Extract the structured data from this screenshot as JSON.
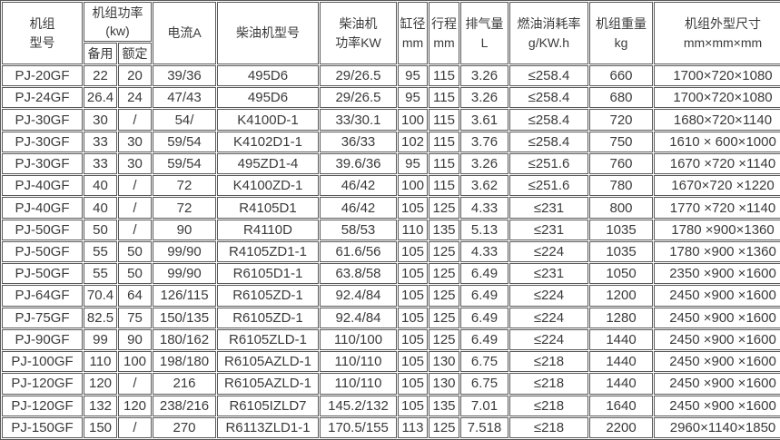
{
  "colors": {
    "border": "#595959",
    "text": "#3a3a3a",
    "background": "#ffffff"
  },
  "table": {
    "header": {
      "model": {
        "l1": "机组",
        "l2": "型号"
      },
      "power_title": {
        "l1": "机组功率",
        "l2": "(kw)"
      },
      "power_sub": {
        "standby": "备用",
        "rated": "额定"
      },
      "current": "电流A",
      "engine_model": "柴油机型号",
      "engine_power": {
        "l1": "柴油机",
        "l2": "功率KW"
      },
      "bore": {
        "l1": "缸径",
        "l2": "mm"
      },
      "stroke": {
        "l1": "行程",
        "l2": "mm"
      },
      "displacement": {
        "l1": "排气量",
        "l2": "L"
      },
      "fuel": {
        "l1": "燃油消耗率",
        "l2": "g/KW.h"
      },
      "weight": {
        "l1": "机组重量",
        "l2": "kg"
      },
      "dimensions": {
        "l1": "机组外型尺寸",
        "l2": "mm×mm×mm"
      }
    },
    "rows": [
      {
        "model": "PJ-20GF",
        "standby": "22",
        "rated": "20",
        "current": "39/36",
        "engine": "495D6",
        "engine_power": "29/26.5",
        "bore": "95",
        "stroke": "115",
        "displacement": "3.26",
        "fuel": "≤258.4",
        "weight": "660",
        "dimensions": "1700×720×1080"
      },
      {
        "model": "PJ-24GF",
        "standby": "26.4",
        "rated": "24",
        "current": "47/43",
        "engine": "495D6",
        "engine_power": "29/26.5",
        "bore": "95",
        "stroke": "115",
        "displacement": "3.26",
        "fuel": "≤258.4",
        "weight": "680",
        "dimensions": "1700×720×1080"
      },
      {
        "model": "PJ-30GF",
        "standby": "30",
        "rated": "/",
        "current": "54/",
        "engine": "K4100D-1",
        "engine_power": "33/30.1",
        "bore": "100",
        "stroke": "115",
        "displacement": "3.61",
        "fuel": "≤258.4",
        "weight": "720",
        "dimensions": "1680×720×1140"
      },
      {
        "model": "PJ-30GF",
        "standby": "33",
        "rated": "30",
        "current": "59/54",
        "engine": "K4102D1-1",
        "engine_power": "36/33",
        "bore": "102",
        "stroke": "115",
        "displacement": "3.76",
        "fuel": "≤258.4",
        "weight": "750",
        "dimensions": "1610 × 600×1000"
      },
      {
        "model": "PJ-30GF",
        "standby": "33",
        "rated": "30",
        "current": "59/54",
        "engine": "495ZD1-4",
        "engine_power": "39.6/36",
        "bore": "95",
        "stroke": "115",
        "displacement": "3.26",
        "fuel": "≤251.6",
        "weight": "760",
        "dimensions": "1670 ×720 ×1140"
      },
      {
        "model": "PJ-40GF",
        "standby": "40",
        "rated": "/",
        "current": "72",
        "engine": "K4100ZD-1",
        "engine_power": "46/42",
        "bore": "100",
        "stroke": "115",
        "displacement": "3.62",
        "fuel": "≤251.6",
        "weight": "780",
        "dimensions": "1670×720 ×1220"
      },
      {
        "model": "PJ-40GF",
        "standby": "40",
        "rated": "/",
        "current": "72",
        "engine": "R4105D1",
        "engine_power": "46/42",
        "bore": "105",
        "stroke": "125",
        "displacement": "4.33",
        "fuel": "≤231",
        "weight": "800",
        "dimensions": "1770 ×720 ×1140"
      },
      {
        "model": "PJ-50GF",
        "standby": "50",
        "rated": "/",
        "current": "90",
        "engine": "R4110D",
        "engine_power": "58/53",
        "bore": "110",
        "stroke": "135",
        "displacement": "5.13",
        "fuel": "≤231",
        "weight": "1035",
        "dimensions": "1780 ×900×1360"
      },
      {
        "model": "PJ-50GF",
        "standby": "55",
        "rated": "50",
        "current": "99/90",
        "engine": "R4105ZD1-1",
        "engine_power": "61.6/56",
        "bore": "105",
        "stroke": "125",
        "displacement": "4.33",
        "fuel": "≤224",
        "weight": "1035",
        "dimensions": "1780 ×900 ×1360"
      },
      {
        "model": "PJ-50GF",
        "standby": "55",
        "rated": "50",
        "current": "99/90",
        "engine": "R6105D1-1",
        "engine_power": "63.8/58",
        "bore": "105",
        "stroke": "125",
        "displacement": "6.49",
        "fuel": "≤231",
        "weight": "1050",
        "dimensions": "2350 ×900 ×1600"
      },
      {
        "model": "PJ-64GF",
        "standby": "70.4",
        "rated": "64",
        "current": "126/115",
        "engine": "R6105ZD-1",
        "engine_power": "92.4/84",
        "bore": "105",
        "stroke": "125",
        "displacement": "6.49",
        "fuel": "≤224",
        "weight": "1200",
        "dimensions": "2450 ×900 ×1600"
      },
      {
        "model": "PJ-75GF",
        "standby": "82.5",
        "rated": "75",
        "current": "150/135",
        "engine": "R6105ZD-1",
        "engine_power": "92.4/84",
        "bore": "105",
        "stroke": "125",
        "displacement": "6.49",
        "fuel": "≤224",
        "weight": "1280",
        "dimensions": "2450 ×900 ×1600"
      },
      {
        "model": "PJ-90GF",
        "standby": "99",
        "rated": "90",
        "current": "180/162",
        "engine": "R6105ZLD-1",
        "engine_power": "110/100",
        "bore": "105",
        "stroke": "125",
        "displacement": "6.49",
        "fuel": "≤224",
        "weight": "1440",
        "dimensions": "2450 ×900 ×1600"
      },
      {
        "model": "PJ-100GF",
        "standby": "110",
        "rated": "100",
        "current": "198/180",
        "engine": "R6105AZLD-1",
        "engine_power": "110/110",
        "bore": "105",
        "stroke": "130",
        "displacement": "6.75",
        "fuel": "≤218",
        "weight": "1440",
        "dimensions": "2450 ×900 ×1600"
      },
      {
        "model": "PJ-120GF",
        "standby": "120",
        "rated": "/",
        "current": "216",
        "engine": "R6105AZLD-1",
        "engine_power": "110/110",
        "bore": "105",
        "stroke": "130",
        "displacement": "6.75",
        "fuel": "≤218",
        "weight": "1440",
        "dimensions": "2450 ×900 ×1600"
      },
      {
        "model": "PJ-120GF",
        "standby": "132",
        "rated": "120",
        "current": "238/216",
        "engine": "R6105IZLD7",
        "engine_power": "145.2/132",
        "bore": "105",
        "stroke": "135",
        "displacement": "7.01",
        "fuel": "≤218",
        "weight": "1640",
        "dimensions": "2450 ×900 ×1600"
      },
      {
        "model": "PJ-150GF",
        "standby": "150",
        "rated": "/",
        "current": "270",
        "engine": "R6113ZLD1-1",
        "engine_power": "170.5/155",
        "bore": "113",
        "stroke": "125",
        "displacement": "7.518",
        "fuel": "≤218",
        "weight": "2200",
        "dimensions": "2960×1140×1850"
      }
    ]
  }
}
